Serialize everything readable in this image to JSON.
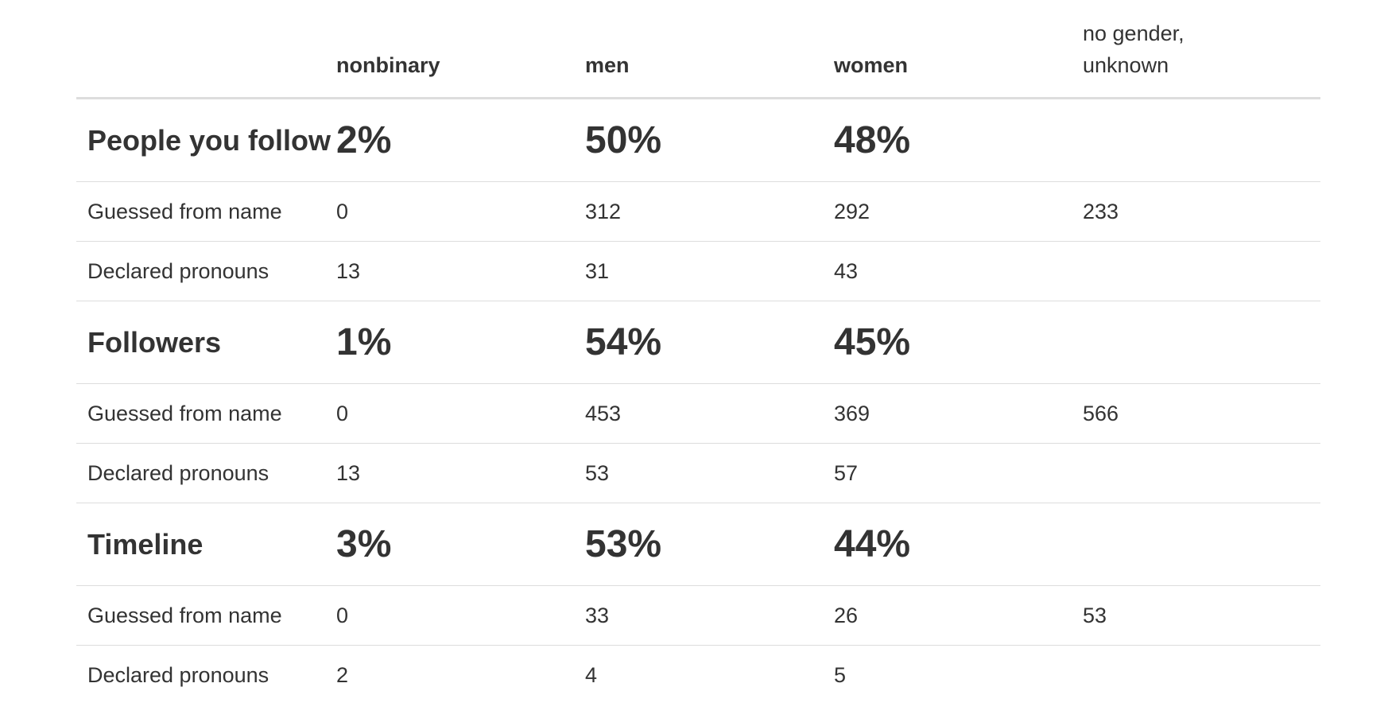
{
  "table": {
    "columns": [
      "nonbinary",
      "men",
      "women",
      "no gender, unknown"
    ],
    "sections": [
      {
        "label": "People you follow",
        "percentages": [
          "2%",
          "50%",
          "48%"
        ],
        "rows": [
          {
            "label": "Guessed from name",
            "values": [
              "0",
              "312",
              "292",
              "233"
            ]
          },
          {
            "label": "Declared pronouns",
            "values": [
              "13",
              "31",
              "43"
            ]
          }
        ]
      },
      {
        "label": "Followers",
        "percentages": [
          "1%",
          "54%",
          "45%"
        ],
        "rows": [
          {
            "label": "Guessed from name",
            "values": [
              "0",
              "453",
              "369",
              "566"
            ]
          },
          {
            "label": "Declared pronouns",
            "values": [
              "13",
              "53",
              "57"
            ]
          }
        ]
      },
      {
        "label": "Timeline",
        "percentages": [
          "3%",
          "53%",
          "44%"
        ],
        "rows": [
          {
            "label": "Guessed from name",
            "values": [
              "0",
              "33",
              "26",
              "53"
            ]
          },
          {
            "label": "Declared pronouns",
            "values": [
              "2",
              "4",
              "5"
            ]
          }
        ]
      }
    ]
  }
}
